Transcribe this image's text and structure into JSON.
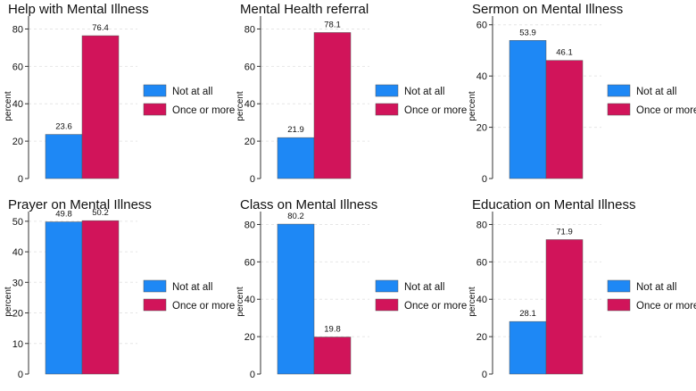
{
  "colors": {
    "not_at_all": "#1E88F5",
    "once_or_more": "#D1145A",
    "bar_stroke": "#555555"
  },
  "chart_data": [
    {
      "type": "bar",
      "title": "Help with Mental Illness",
      "ylabel": "percent",
      "categories": [
        "Not at all",
        "Once or more"
      ],
      "values": [
        23.6,
        76.4
      ],
      "data_labels": [
        "23.6",
        "76.4"
      ],
      "ylim": [
        0,
        85
      ],
      "yticks": [
        0,
        20,
        40,
        60,
        80
      ],
      "legend": [
        "Not at all",
        "Once or more"
      ],
      "legend_position": "right",
      "grid": true
    },
    {
      "type": "bar",
      "title": "Mental Health referral",
      "ylabel": "percent",
      "categories": [
        "Not at all",
        "Once or more"
      ],
      "values": [
        21.9,
        78.1
      ],
      "data_labels": [
        "21.9",
        "78.1"
      ],
      "ylim": [
        0,
        85
      ],
      "yticks": [
        0,
        20,
        40,
        60,
        80
      ],
      "legend": [
        "Not at all",
        "Once or more"
      ],
      "legend_position": "right",
      "grid": true
    },
    {
      "type": "bar",
      "title": "Sermon on Mental Illness",
      "ylabel": "percent",
      "categories": [
        "Not at all",
        "Once or more"
      ],
      "values": [
        53.9,
        46.1
      ],
      "data_labels": [
        "53.9",
        "46.1"
      ],
      "ylim": [
        0,
        62
      ],
      "yticks": [
        0,
        20,
        40,
        60
      ],
      "legend": [
        "Not at all",
        "Once or more"
      ],
      "legend_position": "right",
      "grid": true
    },
    {
      "type": "bar",
      "title": "Prayer on Mental Illness",
      "ylabel": "percent",
      "categories": [
        "Not at all",
        "Once or more"
      ],
      "values": [
        49.8,
        50.2
      ],
      "data_labels": [
        "49.8",
        "50.2"
      ],
      "ylim": [
        0,
        52
      ],
      "yticks": [
        0,
        10,
        20,
        30,
        40,
        50
      ],
      "legend": [
        "Not at all",
        "Once or more"
      ],
      "legend_position": "right",
      "grid": true
    },
    {
      "type": "bar",
      "title": "Class on Mental Illness",
      "ylabel": "percent",
      "categories": [
        "Not at all",
        "Once or more"
      ],
      "values": [
        80.2,
        19.8
      ],
      "data_labels": [
        "80.2",
        "19.8"
      ],
      "ylim": [
        0,
        85
      ],
      "yticks": [
        0,
        20,
        40,
        60,
        80
      ],
      "legend": [
        "Not at all",
        "Once or more"
      ],
      "legend_position": "right",
      "grid": true
    },
    {
      "type": "bar",
      "title": "Education on Mental Illness",
      "ylabel": "percent",
      "categories": [
        "Not at all",
        "Once or more"
      ],
      "values": [
        28.1,
        71.9
      ],
      "data_labels": [
        "28.1",
        "71.9"
      ],
      "ylim": [
        0,
        85
      ],
      "yticks": [
        0,
        20,
        40,
        60,
        80
      ],
      "legend": [
        "Not at all",
        "Once or more"
      ],
      "legend_position": "right",
      "grid": true
    }
  ]
}
